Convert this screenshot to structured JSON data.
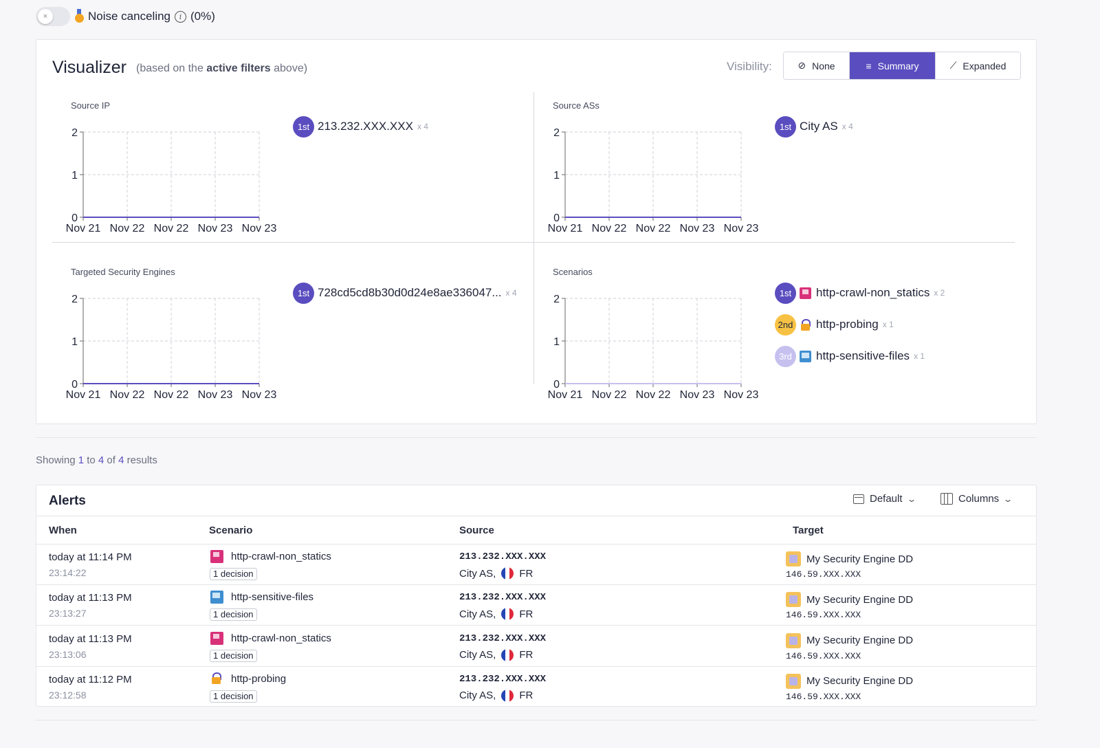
{
  "noise": {
    "label": "Noise canceling",
    "info_glyph": "i",
    "percent": "(0%)",
    "toggle_glyph": "×",
    "enabled": false
  },
  "visualizer": {
    "title": "Visualizer",
    "subtitle_pre": "(based on the ",
    "subtitle_bold": "active filters",
    "subtitle_post": " above)",
    "visibility_label": "Visibility:",
    "visibility_options": [
      {
        "label": "None",
        "icon": "⊘"
      },
      {
        "label": "Summary",
        "icon": "≡"
      },
      {
        "label": "Expanded",
        "icon": "⟋"
      }
    ],
    "visibility_selected": "Summary",
    "panels": [
      {
        "title": "Source IP",
        "ranks": [
          {
            "badge": "1st",
            "name": "213.232.XXX.XXX",
            "count": "x 4",
            "icon": ""
          }
        ]
      },
      {
        "title": "Source ASs",
        "ranks": [
          {
            "badge": "1st",
            "name": "City AS",
            "count": "x 4",
            "icon": ""
          }
        ]
      },
      {
        "title": "Targeted Security Engines",
        "ranks": [
          {
            "badge": "1st",
            "name": "728cd5cd8b30d0d24e8ae336047...",
            "count": "x 4",
            "icon": ""
          }
        ]
      },
      {
        "title": "Scenarios",
        "ranks": [
          {
            "badge": "1st",
            "name": "http-crawl-non_statics",
            "count": "x 2",
            "icon": "crawl"
          },
          {
            "badge": "2nd",
            "name": "http-probing",
            "count": "x 1",
            "icon": "probe"
          },
          {
            "badge": "3rd",
            "name": "http-sensitive-files",
            "count": "x 1",
            "icon": "files"
          }
        ]
      }
    ]
  },
  "chart_data": [
    {
      "type": "line",
      "title": "Source IP",
      "categories": [
        "Nov 21",
        "Nov 22",
        "Nov 22",
        "Nov 23",
        "Nov 23"
      ],
      "series": [
        {
          "values": [
            0,
            0,
            0,
            0,
            0
          ],
          "color": "#5a4dbf"
        }
      ],
      "ylim": [
        0,
        2
      ],
      "yticks": [
        "0",
        "1",
        "2"
      ],
      "grid": true
    },
    {
      "type": "line",
      "title": "Source ASs",
      "categories": [
        "Nov 21",
        "Nov 22",
        "Nov 22",
        "Nov 23",
        "Nov 23"
      ],
      "series": [
        {
          "values": [
            0,
            0,
            0,
            0,
            0
          ],
          "color": "#5a4dbf"
        }
      ],
      "ylim": [
        0,
        2
      ],
      "yticks": [
        "0",
        "1",
        "2"
      ],
      "grid": true
    },
    {
      "type": "line",
      "title": "Targeted Security Engines",
      "categories": [
        "Nov 21",
        "Nov 22",
        "Nov 22",
        "Nov 23",
        "Nov 23"
      ],
      "series": [
        {
          "values": [
            0,
            0,
            0,
            0,
            0
          ],
          "color": "#5a4dbf"
        }
      ],
      "ylim": [
        0,
        2
      ],
      "yticks": [
        "0",
        "1",
        "2"
      ],
      "grid": true
    },
    {
      "type": "line",
      "title": "Scenarios",
      "categories": [
        "Nov 21",
        "Nov 22",
        "Nov 22",
        "Nov 23",
        "Nov 23"
      ],
      "series": [
        {
          "values": [
            0,
            0,
            0,
            0,
            0
          ],
          "color": "#c6c0ef"
        }
      ],
      "ylim": [
        0,
        2
      ],
      "yticks": [
        "0",
        "1",
        "2"
      ],
      "grid": true
    }
  ],
  "results": {
    "prefix": "Showing ",
    "from": "1",
    "to_word": " to ",
    "to": "4",
    "of_word": " of ",
    "total": "4",
    "suffix": " results"
  },
  "alerts": {
    "title": "Alerts",
    "default_label": "Default",
    "columns_label": "Columns",
    "chevron": "⌄",
    "headers": {
      "when": "When",
      "scenario": "Scenario",
      "source": "Source",
      "target": "Target"
    },
    "rows": [
      {
        "when": "today at 11:14 PM",
        "time": "23:14:22",
        "scenario": "http-crawl-non_statics",
        "scenario_icon": "crawl",
        "decision": "1 decision",
        "ip": "213.232.XXX.XXX",
        "as": "City AS,",
        "country": "FR",
        "target": "My Security Engine DD",
        "target_ip": "146.59.XXX.XXX"
      },
      {
        "when": "today at 11:13 PM",
        "time": "23:13:27",
        "scenario": "http-sensitive-files",
        "scenario_icon": "files",
        "decision": "1 decision",
        "ip": "213.232.XXX.XXX",
        "as": "City AS,",
        "country": "FR",
        "target": "My Security Engine DD",
        "target_ip": "146.59.XXX.XXX"
      },
      {
        "when": "today at 11:13 PM",
        "time": "23:13:06",
        "scenario": "http-crawl-non_statics",
        "scenario_icon": "crawl",
        "decision": "1 decision",
        "ip": "213.232.XXX.XXX",
        "as": "City AS,",
        "country": "FR",
        "target": "My Security Engine DD",
        "target_ip": "146.59.XXX.XXX"
      },
      {
        "when": "today at 11:12 PM",
        "time": "23:12:58",
        "scenario": "http-probing",
        "scenario_icon": "probe",
        "decision": "1 decision",
        "ip": "213.232.XXX.XXX",
        "as": "City AS,",
        "country": "FR",
        "target": "My Security Engine DD",
        "target_ip": "146.59.XXX.XXX"
      }
    ]
  }
}
